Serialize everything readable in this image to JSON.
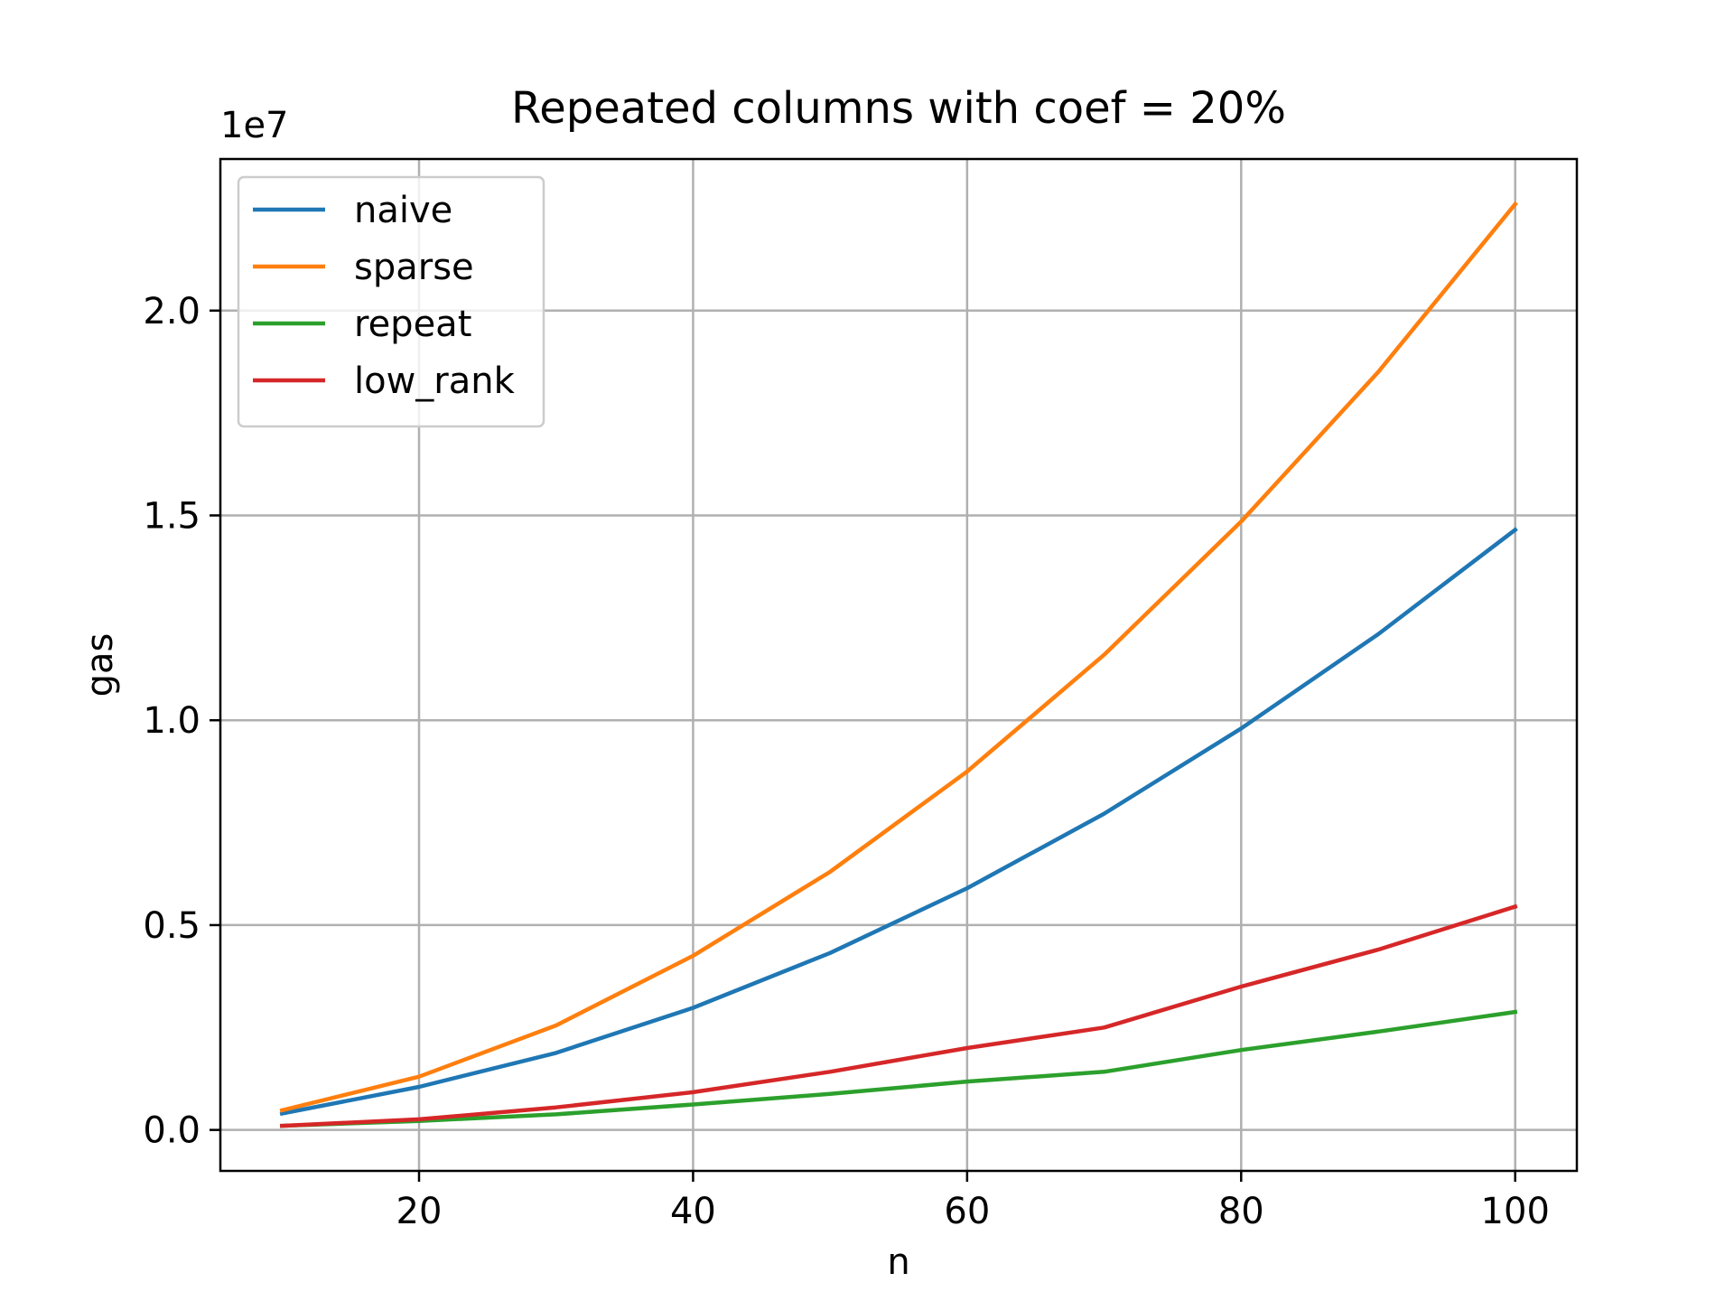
{
  "chart_data": {
    "type": "line",
    "title": "Repeated columns with coef = 20%",
    "xlabel": "n",
    "ylabel": "gas",
    "y_offset_text": "1e7",
    "y_scale": 10000000,
    "xlim": [
      5.5,
      104.5
    ],
    "ylim": [
      -1000000,
      23700000
    ],
    "xticks": [
      20,
      40,
      60,
      80,
      100
    ],
    "yticks": [
      0,
      5000000,
      10000000,
      15000000,
      20000000
    ],
    "ytick_labels": [
      "0.0",
      "0.5",
      "1.0",
      "1.5",
      "2.0"
    ],
    "grid": true,
    "legend_position": "top-left",
    "x": [
      10,
      20,
      30,
      40,
      50,
      60,
      70,
      80,
      90,
      100
    ],
    "series": [
      {
        "name": "naive",
        "color": "#1f77b4",
        "values": [
          400000,
          1050000,
          1880000,
          2980000,
          4320000,
          5900000,
          7720000,
          9800000,
          12100000,
          14650000
        ]
      },
      {
        "name": "sparse",
        "color": "#ff7f0e",
        "values": [
          480000,
          1300000,
          2550000,
          4250000,
          6300000,
          8750000,
          11600000,
          14850000,
          18500000,
          22600000
        ]
      },
      {
        "name": "repeat",
        "color": "#2ca02c",
        "values": [
          100000,
          220000,
          380000,
          620000,
          880000,
          1180000,
          1420000,
          1950000,
          2400000,
          2880000
        ]
      },
      {
        "name": "low_rank",
        "color": "#d62728",
        "values": [
          100000,
          260000,
          550000,
          920000,
          1420000,
          2000000,
          2500000,
          3500000,
          4400000,
          5450000
        ]
      }
    ]
  }
}
